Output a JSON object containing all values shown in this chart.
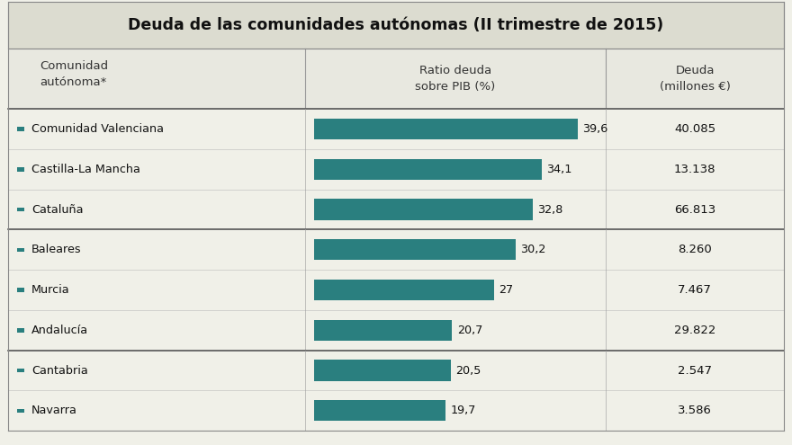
{
  "title": "Deuda de las comunidades autónomas (II trimestre de 2015)",
  "col1_header": "Comunidad\nautónoma*",
  "col2_header": "Ratio deuda\nsobre PIB (%)",
  "col3_header": "Deuda\n(millones euros)",
  "communities": [
    "Comunidad Valenciana",
    "Castilla-La Mancha",
    "Cataluña",
    "Baleares",
    "Murcia",
    "Andalucía",
    "Cantabria",
    "Navarra"
  ],
  "ratios": [
    39.6,
    34.1,
    32.8,
    30.2,
    27.0,
    20.7,
    20.5,
    19.7
  ],
  "ratio_labels": [
    "39,6",
    "34,1",
    "32,8",
    "30,2",
    "27",
    "20,7",
    "20,5",
    "19,7"
  ],
  "deuda_labels": [
    "40.085",
    "13.138",
    "66.813",
    "8.260",
    "7.467",
    "29.822",
    "2.547",
    "3.586"
  ],
  "bar_color": "#2a7f7f",
  "bg_color": "#f0f0e8",
  "title_bg": "#dcdcd0",
  "header_bg": "#e8e8e0",
  "max_ratio": 42,
  "group_separators": [
    3,
    6
  ]
}
